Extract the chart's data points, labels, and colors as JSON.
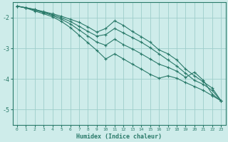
{
  "xlabel": "Humidex (Indice chaleur)",
  "bg_color": "#ceecea",
  "grid_color": "#9ececa",
  "line_color": "#2a7a6a",
  "xlim": [
    -0.5,
    23.5
  ],
  "ylim": [
    -5.5,
    -1.5
  ],
  "xticks": [
    0,
    1,
    2,
    3,
    4,
    5,
    6,
    7,
    8,
    9,
    10,
    11,
    12,
    13,
    14,
    15,
    16,
    17,
    18,
    19,
    20,
    21,
    22,
    23
  ],
  "yticks": [
    -5,
    -4,
    -3,
    -2
  ],
  "series": [
    [
      -1.62,
      -1.67,
      -1.73,
      -1.8,
      -1.87,
      -1.95,
      -2.05,
      -2.15,
      -2.3,
      -2.47,
      -2.35,
      -2.1,
      -2.25,
      -2.45,
      -2.62,
      -2.8,
      -3.05,
      -3.18,
      -3.38,
      -3.68,
      -3.9,
      -4.1,
      -4.3,
      -4.72
    ],
    [
      -1.62,
      -1.67,
      -1.73,
      -1.82,
      -1.9,
      -2.0,
      -2.12,
      -2.28,
      -2.45,
      -2.6,
      -2.55,
      -2.35,
      -2.5,
      -2.65,
      -2.8,
      -2.98,
      -3.18,
      -3.38,
      -3.58,
      -3.82,
      -4.05,
      -4.18,
      -4.38,
      -4.72
    ],
    [
      -1.62,
      -1.68,
      -1.75,
      -1.83,
      -1.93,
      -2.05,
      -2.2,
      -2.4,
      -2.6,
      -2.8,
      -2.9,
      -2.7,
      -2.88,
      -3.02,
      -3.18,
      -3.35,
      -3.52,
      -3.62,
      -3.75,
      -3.95,
      -3.78,
      -4.05,
      -4.5,
      -4.72
    ],
    [
      -1.62,
      -1.68,
      -1.78,
      -1.87,
      -1.97,
      -2.12,
      -2.32,
      -2.57,
      -2.82,
      -3.07,
      -3.35,
      -3.18,
      -3.35,
      -3.52,
      -3.68,
      -3.85,
      -3.98,
      -3.9,
      -3.98,
      -4.12,
      -4.25,
      -4.38,
      -4.55,
      -4.72
    ]
  ]
}
